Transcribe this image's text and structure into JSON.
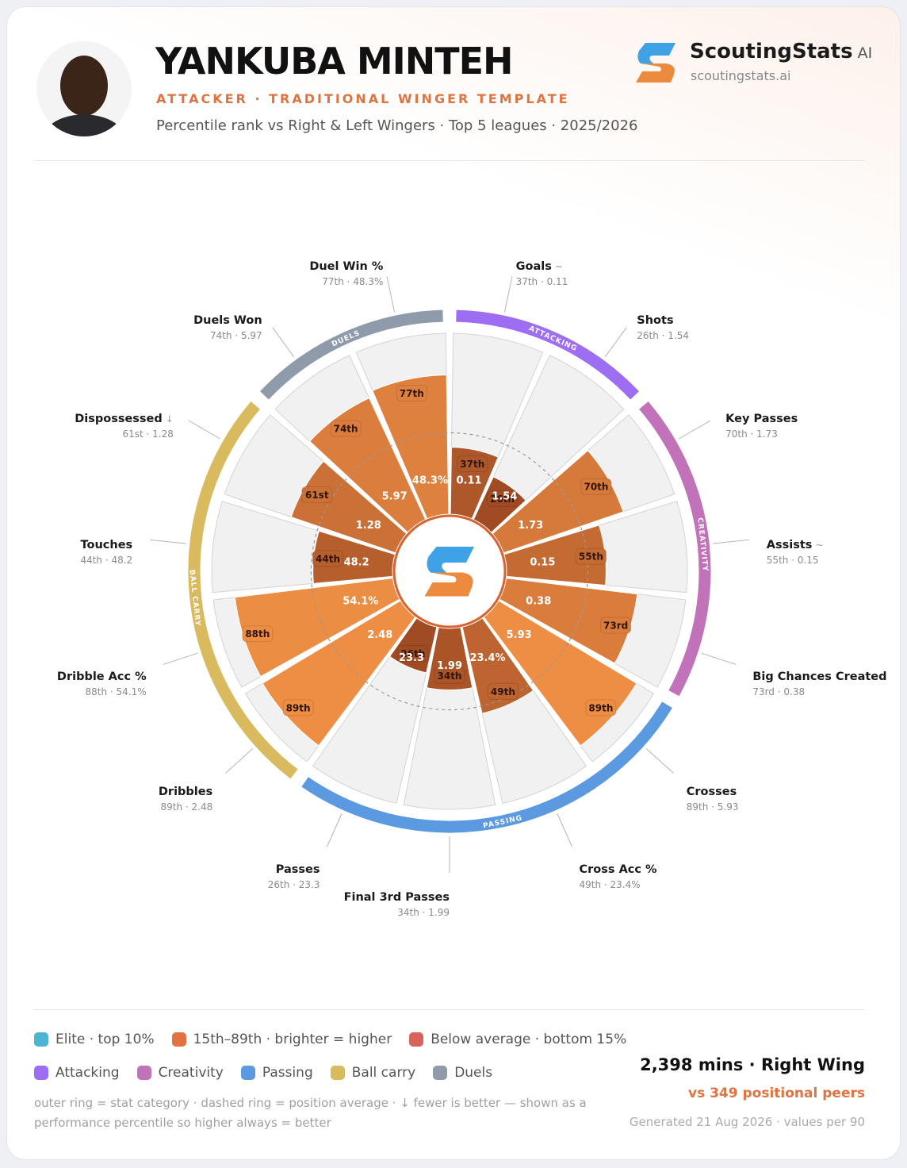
{
  "header": {
    "name": "YANKUBA MINTEH",
    "role": "ATTACKER · TRADITIONAL WINGER TEMPLATE",
    "context": "Percentile rank vs Right & Left Wingers · Top 5 leagues · 2025/2026"
  },
  "brand": {
    "name": "ScoutingStats",
    "badge": "AI",
    "url": "scoutingstats.ai"
  },
  "chart_data": {
    "type": "pizza",
    "categories": [
      "Goals",
      "Shots",
      "Key Passes",
      "Assists",
      "Big Chances Created",
      "Crosses",
      "Cross Acc %",
      "Final 3rd Passes",
      "Passes",
      "Dribbles",
      "Dribble Acc %",
      "Touches",
      "Dispossessed",
      "Duels Won",
      "Duel Win %"
    ],
    "flags": [
      "~",
      null,
      null,
      "~",
      null,
      null,
      null,
      null,
      null,
      null,
      null,
      null,
      "↓",
      null,
      null
    ],
    "values": [
      37,
      26,
      70,
      55,
      73,
      89,
      49,
      34,
      26,
      89,
      88,
      44,
      61,
      74,
      77
    ],
    "value_labels": [
      "37th",
      "26th",
      "70th",
      "55th",
      "73rd",
      "89th",
      "49th",
      "34th",
      "26th",
      "89th",
      "88th",
      "44th",
      "61st",
      "74th",
      "77th"
    ],
    "stat_labels": [
      "0.11",
      "1.54",
      "1.73",
      "0.15",
      "0.38",
      "5.93",
      "23.4%",
      "1.99",
      "23.3",
      "2.48",
      "54.1%",
      "48.2",
      "1.28",
      "5.97",
      "48.3%"
    ],
    "detail_labels": [
      "37th · 0.11",
      "26th · 1.54",
      "70th · 1.73",
      "55th · 0.15",
      "73rd · 0.38",
      "89th · 5.93",
      "49th · 23.4%",
      "34th · 1.99",
      "26th · 23.3",
      "89th · 2.48",
      "88th · 54.1%",
      "44th · 48.2",
      "61st · 1.28",
      "74th · 5.97",
      "77th · 48.3%"
    ],
    "ylim": [
      0,
      100
    ],
    "average": 45,
    "groups": [
      {
        "ring_label": "ATTACKING",
        "legend_label": "Attacking",
        "color": "#9d6df2",
        "members": [
          "Goals",
          "Shots"
        ]
      },
      {
        "ring_label": "CREATIVITY",
        "legend_label": "Creativity",
        "color": "#c172b9",
        "members": [
          "Key Passes",
          "Assists",
          "Big Chances Created"
        ]
      },
      {
        "ring_label": "PASSING",
        "legend_label": "Passing",
        "color": "#5b99e0",
        "members": [
          "Crosses",
          "Cross Acc %",
          "Final 3rd Passes",
          "Passes"
        ]
      },
      {
        "ring_label": "BALL CARRY",
        "legend_label": "Ball carry",
        "color": "#d9ba5e",
        "members": [
          "Dribbles",
          "Dribble Acc %",
          "Touches",
          "Dispossessed"
        ]
      },
      {
        "ring_label": "DUELS",
        "legend_label": "Duels",
        "color": "#8f9aab",
        "members": [
          "Duels Won",
          "Duel Win %"
        ]
      }
    ]
  },
  "legend": {
    "tiers": [
      {
        "label": "Elite · top 10%",
        "color": "#4db4d4"
      },
      {
        "label": "15th–89th · brighter = higher",
        "color": "#e0733f"
      },
      {
        "label": "Below average · bottom 15%",
        "color": "#d9625b"
      }
    ],
    "note": "outer ring = stat category · dashed ring = position average · ↓ fewer is better — shown as a performance percentile so higher always = better"
  },
  "footer": {
    "minutes": "2,398 mins · Right Wing",
    "peers": "vs 349 positional peers",
    "generated": "Generated 21 Aug 2026 · values per 90"
  }
}
